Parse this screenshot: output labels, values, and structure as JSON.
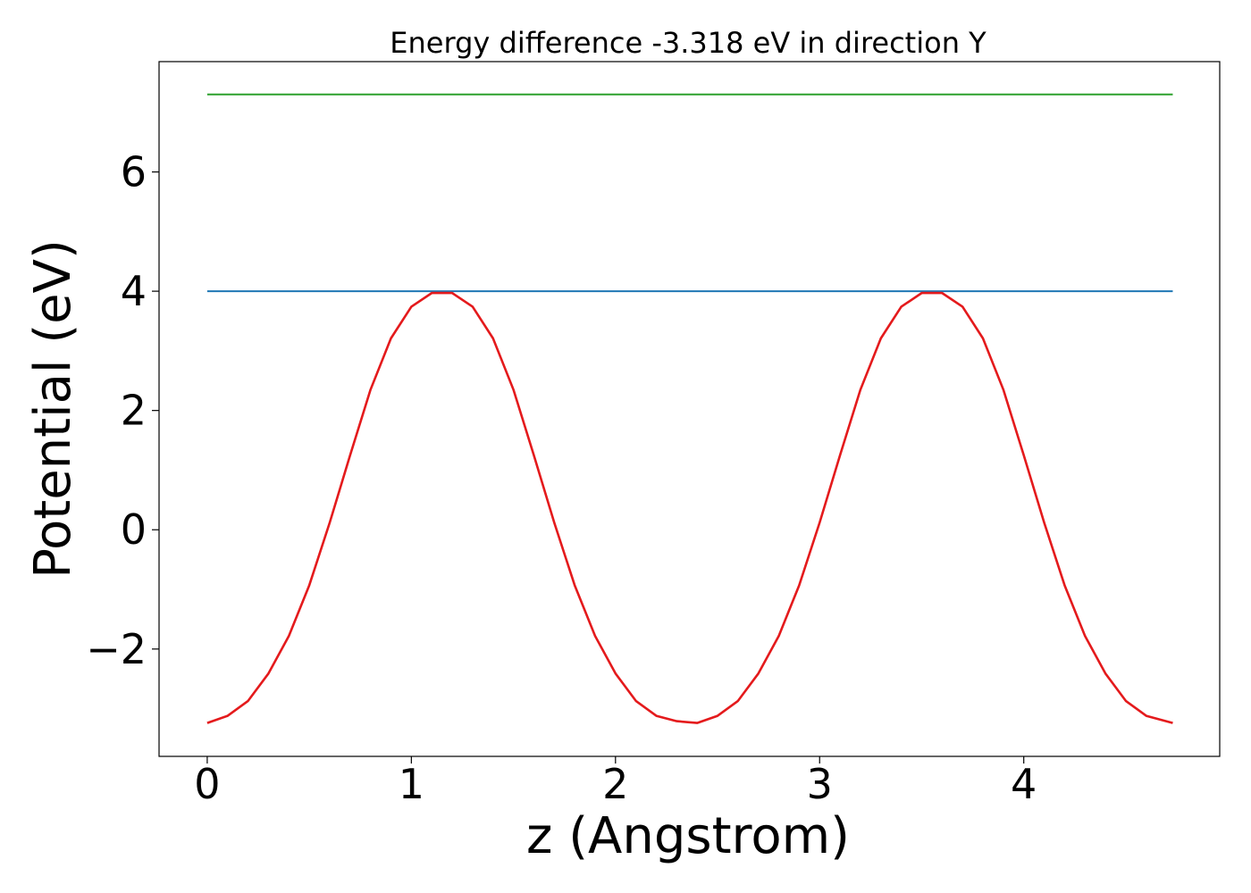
{
  "chart_data": {
    "type": "line",
    "title": "Energy difference -3.318 eV in direction Y",
    "xlabel": "z (Angstrom)",
    "ylabel": "Potential (eV)",
    "xlim": [
      -0.236,
      4.96
    ],
    "ylim": [
      -3.8,
      7.85
    ],
    "x_ticks": [
      0,
      1,
      2,
      3,
      4
    ],
    "x_tick_labels": [
      "0",
      "1",
      "2",
      "3",
      "4"
    ],
    "y_ticks": [
      -2,
      0,
      2,
      4,
      6
    ],
    "y_tick_labels": [
      "−2",
      "0",
      "2",
      "4",
      "6"
    ],
    "grid": false,
    "legend": "none",
    "series": [
      {
        "color": "#2ca02c",
        "style": "horizontal-line",
        "x": [
          0,
          4.73
        ],
        "y": [
          7.3,
          7.3
        ]
      },
      {
        "color": "#1f77b4",
        "style": "horizontal-line",
        "x": [
          0,
          4.73
        ],
        "y": [
          4.0,
          4.0
        ]
      },
      {
        "color": "#e41a1c",
        "style": "curve",
        "x": [
          0,
          0.1,
          0.2,
          0.3,
          0.4,
          0.5,
          0.6,
          0.7,
          0.8,
          0.9,
          1.0,
          1.1,
          1.2,
          1.3,
          1.4,
          1.5,
          1.6,
          1.7,
          1.8,
          1.9,
          2.0,
          2.1,
          2.2,
          2.3,
          2.4,
          2.5,
          2.6,
          2.7,
          2.8,
          2.9,
          3.0,
          3.1,
          3.2,
          3.3,
          3.4,
          3.5,
          3.6,
          3.7,
          3.8,
          3.9,
          4.0,
          4.1,
          4.2,
          4.3,
          4.4,
          4.5,
          4.6,
          4.73
        ],
        "y": [
          -3.24,
          -3.12,
          -2.87,
          -2.41,
          -1.78,
          -0.93,
          0.12,
          1.25,
          2.35,
          3.21,
          3.74,
          3.97,
          3.97,
          3.74,
          3.21,
          2.35,
          1.25,
          0.12,
          -0.93,
          -1.78,
          -2.41,
          -2.87,
          -3.12,
          -3.21,
          -3.24,
          -3.12,
          -2.87,
          -2.41,
          -1.78,
          -0.93,
          0.12,
          1.25,
          2.35,
          3.21,
          3.74,
          3.97,
          3.97,
          3.74,
          3.21,
          2.35,
          1.25,
          0.12,
          -0.93,
          -1.78,
          -2.41,
          -2.87,
          -3.12,
          -3.24
        ]
      }
    ]
  }
}
